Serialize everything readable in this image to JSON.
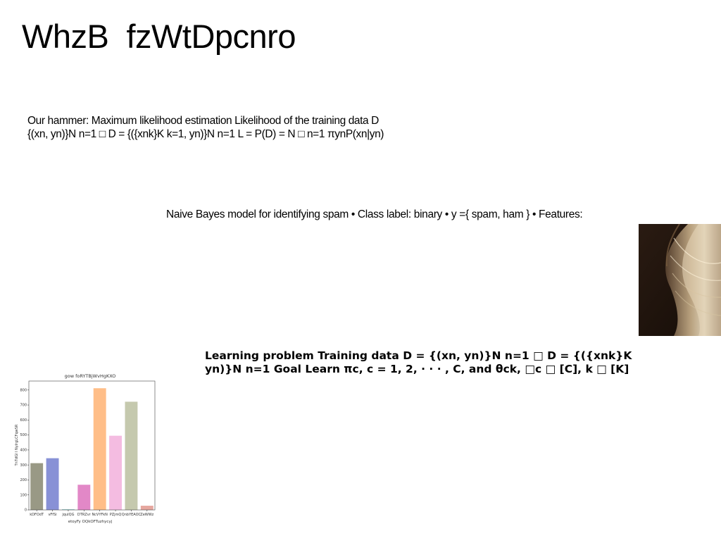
{
  "slide": {
    "title": "WhzB  fzWtDpcnro",
    "paragraph1": {
      "line1": "Our hammer: Maximum likelihood estimation Likelihood of the training data D",
      "line2": "{(xn, yn)}N n=1 □ D = {({xnk}K k=1, yn)}N n=1 L = P(D) = N □ n=1 πynP(xn|yn)"
    },
    "paragraph2": "Naive Bayes model for identifying spam • Class label: binary • y ={ spam, ham } • Features:",
    "paragraph3": {
      "line1": "Learning problem Training data D = {(xn, yn)}N n=1 □ D = {({xnk}K",
      "line2": "yn)}N n=1 Goal Learn πc, c = 1, 2, · · · , C, and θck, □c □ [C], k □ [K]"
    },
    "photo_icon": "abstract-metallic-swirl-photo"
  },
  "chart_data": {
    "type": "bar",
    "title": "gow foRYTBjWvHgKXO",
    "xlabel": "etoyFy OQkOFTuzhycyj",
    "ylabel": "TnTdGl I NyIrgLCFqwSR",
    "categories": [
      "kDFOdT",
      "vFfSi",
      "jquIQG",
      "DTRZvr",
      "NcVYFkN",
      "PZjmQ",
      "QnbYEAOC",
      "ZeWWz"
    ],
    "values": [
      312,
      345,
      5,
      168,
      812,
      495,
      722,
      28
    ],
    "colors": [
      "#999985",
      "#8891d6",
      "#9fd3d3",
      "#e288c7",
      "#ffbe88",
      "#f4bce1",
      "#c5c9ae",
      "#e6a79f"
    ],
    "ylim": [
      0,
      860
    ],
    "yticks": [
      0,
      100,
      200,
      300,
      400,
      500,
      600,
      700,
      800
    ],
    "grid": false
  }
}
